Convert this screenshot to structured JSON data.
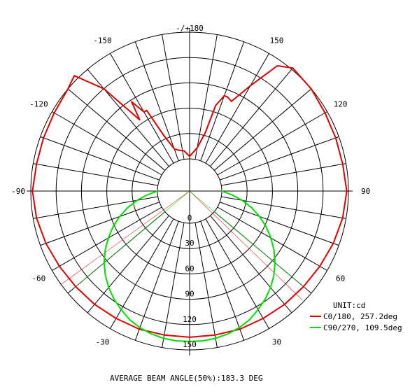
{
  "chart_data": {
    "type": "polar",
    "subtype": "luminous-intensity-distribution",
    "unit_label": "UNIT:cd",
    "footer": "AVERAGE BEAM ANGLE(50%):183.3 DEG",
    "radial_ticks": [
      "0",
      "30",
      "60",
      "90",
      "120",
      "150"
    ],
    "radial_range": [
      0,
      150
    ],
    "angular_labels": [
      "-/+180",
      "150",
      "120",
      "90",
      "60",
      "30",
      "0",
      "-30",
      "-60",
      "-90",
      "-120",
      "-150"
    ],
    "angular_label_positions_deg": [
      180,
      150,
      120,
      90,
      60,
      30,
      0,
      -30,
      -60,
      -90,
      -120,
      -150
    ],
    "grid": true,
    "legend_position": "bottom-right",
    "series": [
      {
        "name": "C0/180, 257.2deg",
        "color": "#e00000",
        "angles_deg": [
          -180,
          -172,
          -165,
          -160,
          -155,
          -152,
          -150,
          -147,
          -145,
          -140,
          -135,
          -130,
          -120,
          -110,
          -100,
          -90,
          -80,
          -70,
          -60,
          -50,
          -40,
          -30,
          -20,
          -10,
          0,
          10,
          20,
          30,
          40,
          50,
          60,
          70,
          80,
          90,
          100,
          110,
          120,
          130,
          140,
          145,
          150,
          155,
          158,
          160,
          163,
          165,
          170,
          180
        ],
        "values": [
          3,
          10,
          12,
          15,
          35,
          70,
          70,
          88,
          65,
          120,
          155,
          150,
          147,
          146,
          146,
          148,
          146,
          143,
          140,
          138,
          137,
          136,
          136,
          135,
          135,
          135,
          136,
          136,
          137,
          138,
          140,
          143,
          146,
          148,
          146,
          146,
          147,
          150,
          152,
          143,
          106,
          79,
          82,
          82,
          68,
          33,
          14,
          3
        ]
      },
      {
        "name": "C90/270, 109.5deg",
        "color": "#00e000",
        "angles_deg": [
          -90,
          -85,
          -80,
          -75,
          -70,
          -65,
          -60,
          -55,
          -50,
          -45,
          -40,
          -35,
          -30,
          -25,
          -20,
          -15,
          -10,
          -5,
          0,
          5,
          10,
          15,
          20,
          25,
          30,
          35,
          40,
          45,
          50,
          55,
          60,
          65,
          70,
          75,
          80,
          85,
          90
        ],
        "values": [
          0,
          12,
          25,
          38,
          50,
          62,
          73,
          84,
          94,
          103,
          111,
          118,
          124,
          130,
          134,
          137,
          139,
          140,
          140,
          140,
          139,
          137,
          134,
          130,
          124,
          118,
          111,
          103,
          94,
          84,
          73,
          62,
          50,
          38,
          25,
          12,
          0
        ]
      }
    ]
  }
}
